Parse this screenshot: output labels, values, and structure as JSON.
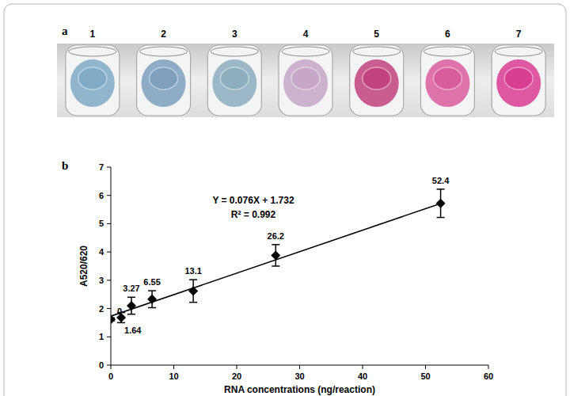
{
  "chart_data": [
    {
      "type": "image",
      "panel_label": "a",
      "categories": [
        "1",
        "2",
        "3",
        "4",
        "5",
        "6",
        "7"
      ],
      "colors": [
        "#7fa9c6",
        "#7d9fbd",
        "#8cadbf",
        "#c6a6c8",
        "#c2427e",
        "#d95a9c",
        "#d83c90"
      ]
    },
    {
      "type": "scatter",
      "panel_label": "b",
      "x": [
        0,
        1.64,
        3.27,
        6.55,
        13.1,
        26.2,
        52.4
      ],
      "y": [
        1.62,
        1.68,
        2.1,
        2.33,
        2.62,
        3.88,
        5.72
      ],
      "error": [
        0.05,
        0.18,
        0.3,
        0.3,
        0.4,
        0.38,
        0.5
      ],
      "fit": {
        "slope": 0.076,
        "intercept": 1.732
      },
      "annotations": [
        "Y = 0.076X + 1.732",
        "R² = 0.992"
      ],
      "x_label": "RNA concentrations (ng/reaction)",
      "y_label": "A520/620",
      "xlim": [
        0,
        60
      ],
      "xticks": [
        0,
        10,
        20,
        30,
        40,
        50,
        60
      ],
      "ylim": [
        0,
        7
      ],
      "yticks": [
        0,
        1,
        2,
        3,
        4,
        5,
        6,
        7
      ],
      "grid": false,
      "data_labels": true,
      "marker": "diamond",
      "color": "#000000"
    }
  ]
}
